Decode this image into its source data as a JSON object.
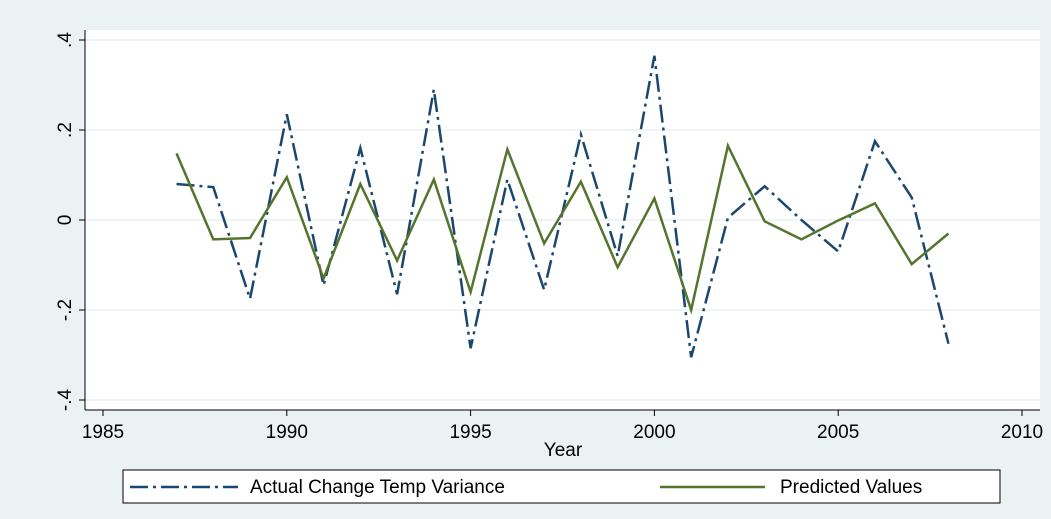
{
  "chart_data": {
    "type": "line",
    "x_label": "Year",
    "x": [
      1987,
      1988,
      1989,
      1990,
      1991,
      1992,
      1993,
      1994,
      1995,
      1996,
      1997,
      1998,
      1999,
      2000,
      2001,
      2002,
      2003,
      2004,
      2005,
      2006,
      2007,
      2008
    ],
    "series": [
      {
        "name": "Actual Change Temp Variance",
        "color": "#1a476f",
        "dash": "dashdot",
        "values": [
          0.08,
          0.073,
          -0.175,
          0.235,
          -0.145,
          0.16,
          -0.165,
          0.29,
          -0.285,
          0.09,
          -0.155,
          0.19,
          -0.08,
          0.365,
          -0.305,
          0.005,
          0.075,
          0.0,
          -0.07,
          0.175,
          0.05,
          -0.275
        ]
      },
      {
        "name": "Predicted Values",
        "color": "#55752f",
        "dash": "solid",
        "values": [
          0.148,
          -0.043,
          -0.04,
          0.095,
          -0.13,
          0.08,
          -0.09,
          0.09,
          -0.16,
          0.157,
          -0.052,
          0.085,
          -0.105,
          0.048,
          -0.2,
          0.165,
          -0.003,
          -0.043,
          -0.001,
          0.037,
          -0.098,
          -0.03
        ]
      }
    ],
    "xlim": [
      1985,
      2010
    ],
    "xticks": [
      1985,
      1990,
      1995,
      2000,
      2005,
      2010
    ],
    "ylim": [
      -0.4,
      0.4
    ],
    "yticks": [
      {
        "value": -0.4,
        "label": "-.4"
      },
      {
        "value": -0.2,
        "label": "-.2"
      },
      0,
      {
        "value": 0.2,
        "label": ".2"
      },
      {
        "value": 0.4,
        "label": ".4"
      }
    ],
    "grid": true,
    "legend": "bottom"
  }
}
